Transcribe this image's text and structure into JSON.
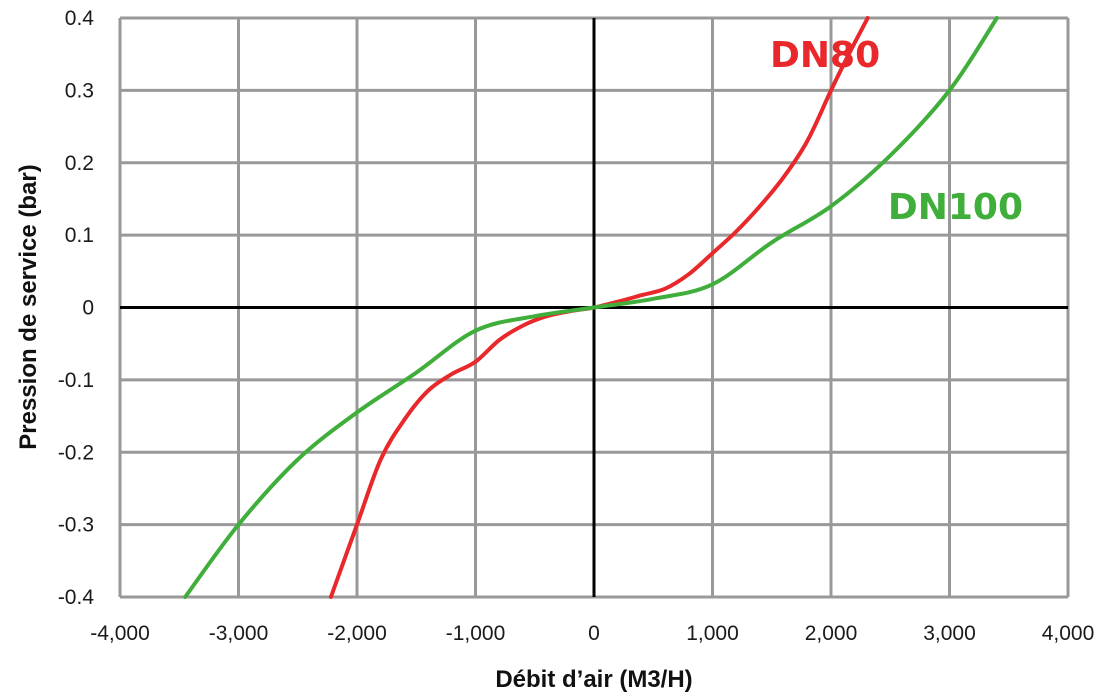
{
  "chart_data": {
    "type": "line",
    "xlabel": "Débit d’air (M3/H)",
    "ylabel": "Pression de service (bar)",
    "xlim": [
      -4000,
      4000
    ],
    "ylim": [
      -0.4,
      0.4
    ],
    "x_ticks": [
      -4000,
      -3000,
      -2000,
      -1000,
      0,
      1000,
      2000,
      3000,
      4000
    ],
    "x_tick_labels": [
      "-4,000",
      "-3,000",
      "-2,000",
      "-1,000",
      "0",
      "1,000",
      "2,000",
      "3,000",
      "4,000"
    ],
    "y_ticks": [
      0.4,
      0.3,
      0.2,
      0.1,
      0,
      -0.1,
      -0.2,
      -0.3,
      -0.4
    ],
    "y_tick_labels": [
      "0.4",
      "0.3",
      "0.2",
      "0.1",
      "0",
      "-0.1",
      "-0.2",
      "-0.3",
      "-0.4"
    ],
    "grid": true,
    "series": [
      {
        "name": "DN80",
        "color": "#e8282b",
        "label_anchor": {
          "x": 1950,
          "y": 0.35
        },
        "points": [
          [
            -2220,
            -0.4
          ],
          [
            -2000,
            -0.3
          ],
          [
            -1800,
            -0.21
          ],
          [
            -1600,
            -0.155
          ],
          [
            -1400,
            -0.115
          ],
          [
            -1200,
            -0.092
          ],
          [
            -1000,
            -0.075
          ],
          [
            -800,
            -0.045
          ],
          [
            -600,
            -0.025
          ],
          [
            -400,
            -0.012
          ],
          [
            -200,
            -0.005
          ],
          [
            0,
            0
          ],
          [
            200,
            0.008
          ],
          [
            400,
            0.017
          ],
          [
            600,
            0.026
          ],
          [
            800,
            0.046
          ],
          [
            1000,
            0.075
          ],
          [
            1200,
            0.105
          ],
          [
            1400,
            0.14
          ],
          [
            1600,
            0.18
          ],
          [
            1800,
            0.23
          ],
          [
            2000,
            0.3
          ],
          [
            2150,
            0.35
          ],
          [
            2310,
            0.4
          ]
        ]
      },
      {
        "name": "DN100",
        "color": "#3fae3b",
        "label_anchor": {
          "x": 3050,
          "y": 0.14
        },
        "points": [
          [
            -3450,
            -0.4
          ],
          [
            -3000,
            -0.3
          ],
          [
            -2500,
            -0.21
          ],
          [
            -2000,
            -0.145
          ],
          [
            -1500,
            -0.09
          ],
          [
            -1000,
            -0.032
          ],
          [
            -500,
            -0.012
          ],
          [
            0,
            0
          ],
          [
            500,
            0.012
          ],
          [
            1000,
            0.032
          ],
          [
            1500,
            0.09
          ],
          [
            2000,
            0.14
          ],
          [
            2500,
            0.21
          ],
          [
            3000,
            0.3
          ],
          [
            3400,
            0.4
          ]
        ]
      }
    ]
  }
}
